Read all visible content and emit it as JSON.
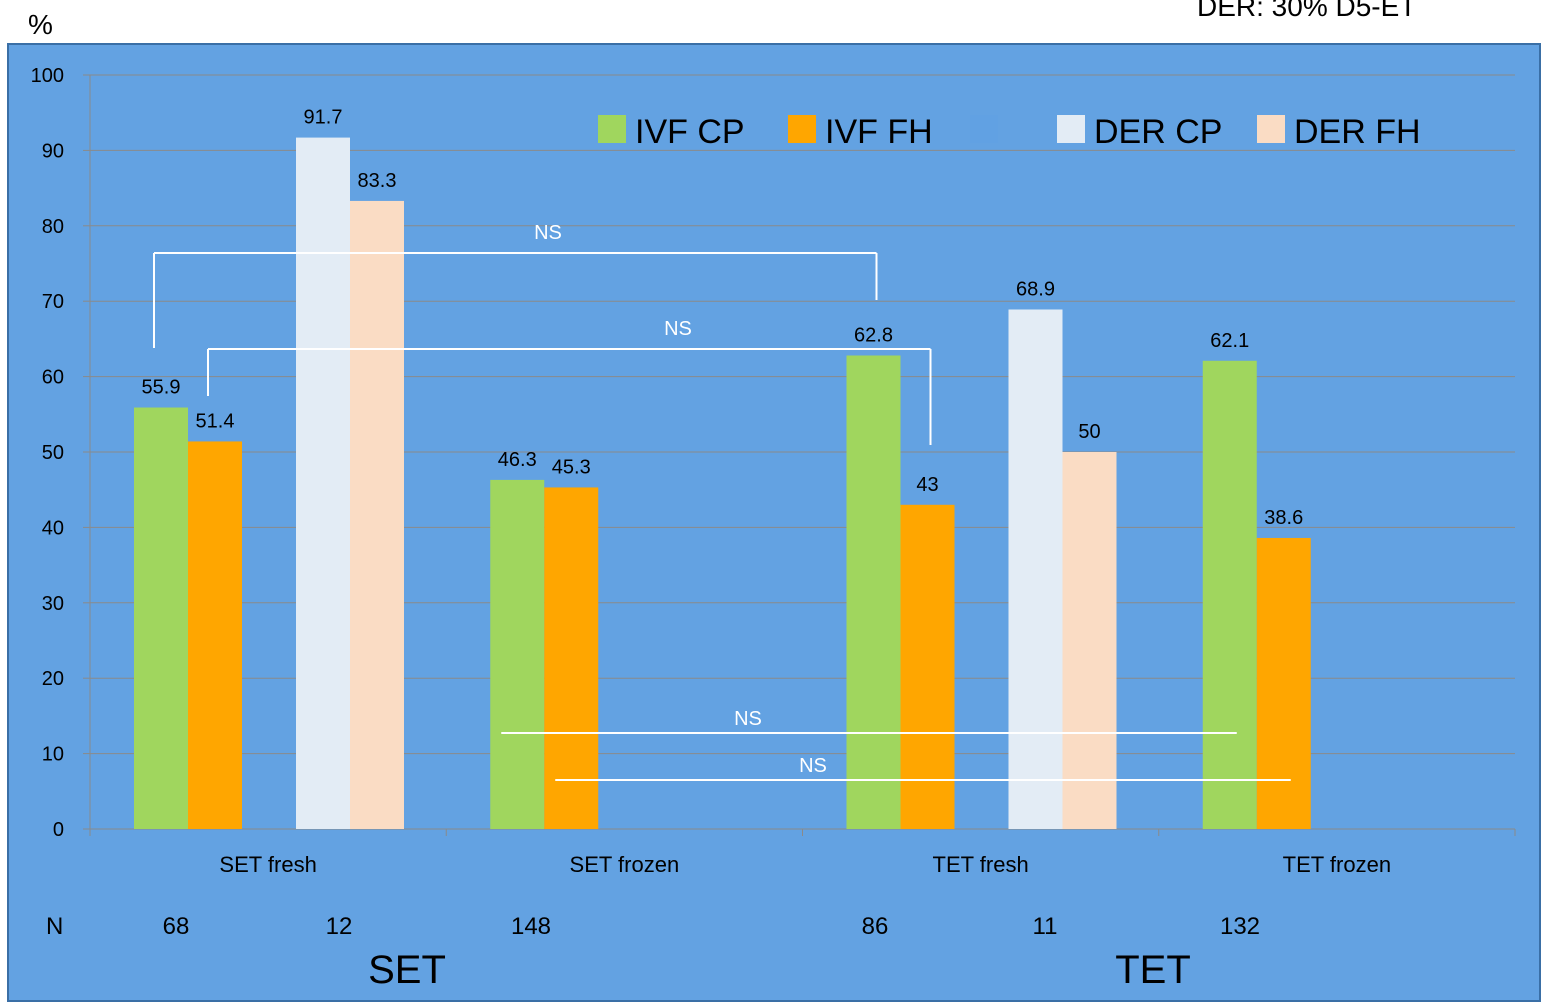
{
  "chart_data": {
    "type": "bar",
    "ylabel": "%",
    "ylim": [
      0,
      100
    ],
    "yticks": [
      "0",
      "10",
      "20",
      "30",
      "40",
      "50",
      "60",
      "70",
      "80",
      "90",
      "100"
    ],
    "top_right_note": "DER: 30% D5-ET",
    "categories": [
      "SET fresh",
      "SET frozen",
      "TET fresh",
      "TET frozen"
    ],
    "series": [
      {
        "name": "IVF CP",
        "color": "#a0d65e",
        "values": [
          55.9,
          46.3,
          62.8,
          62.1
        ]
      },
      {
        "name": "IVF FH",
        "color": "#ffa600",
        "values": [
          51.4,
          45.3,
          43,
          38.6
        ]
      },
      {
        "name": "",
        "color": "#61a1e3",
        "values": [
          null,
          null,
          null,
          null
        ]
      },
      {
        "name": "DER CP",
        "color": "#e3ecf5",
        "values": [
          91.7,
          null,
          68.9,
          null
        ]
      },
      {
        "name": "DER FH",
        "color": "#fadcc4",
        "values": [
          83.3,
          null,
          50,
          null
        ]
      }
    ],
    "data_labels": {
      "series_0": [
        "55.9",
        "46.3",
        "62.8",
        "62.1"
      ],
      "series_1": [
        "51.4",
        "45.3",
        "43",
        "38.6"
      ],
      "series_3": [
        "91.7",
        "",
        "68.9",
        ""
      ],
      "series_4": [
        "83.3",
        "",
        "50",
        ""
      ]
    },
    "significance_brackets": [
      {
        "label": "NS",
        "from": "SET fresh IVF CP",
        "to": "TET fresh IVF CP"
      },
      {
        "label": "NS",
        "from": "SET fresh IVF FH",
        "to": "TET fresh IVF FH"
      },
      {
        "label": "NS",
        "from": "SET frozen IVF CP",
        "to": "TET frozen IVF CP"
      },
      {
        "label": "NS",
        "from": "SET frozen IVF FH",
        "to": "TET frozen IVF FH"
      }
    ],
    "n_row": {
      "label": "N",
      "values": [
        "68",
        "12",
        "148",
        "86",
        "11",
        "132"
      ]
    },
    "group_labels": [
      "SET",
      "TET"
    ],
    "grid": true,
    "legend_position": "top-right",
    "background_color": "#63a2e2",
    "gridline_color": "#8a8a8a"
  }
}
